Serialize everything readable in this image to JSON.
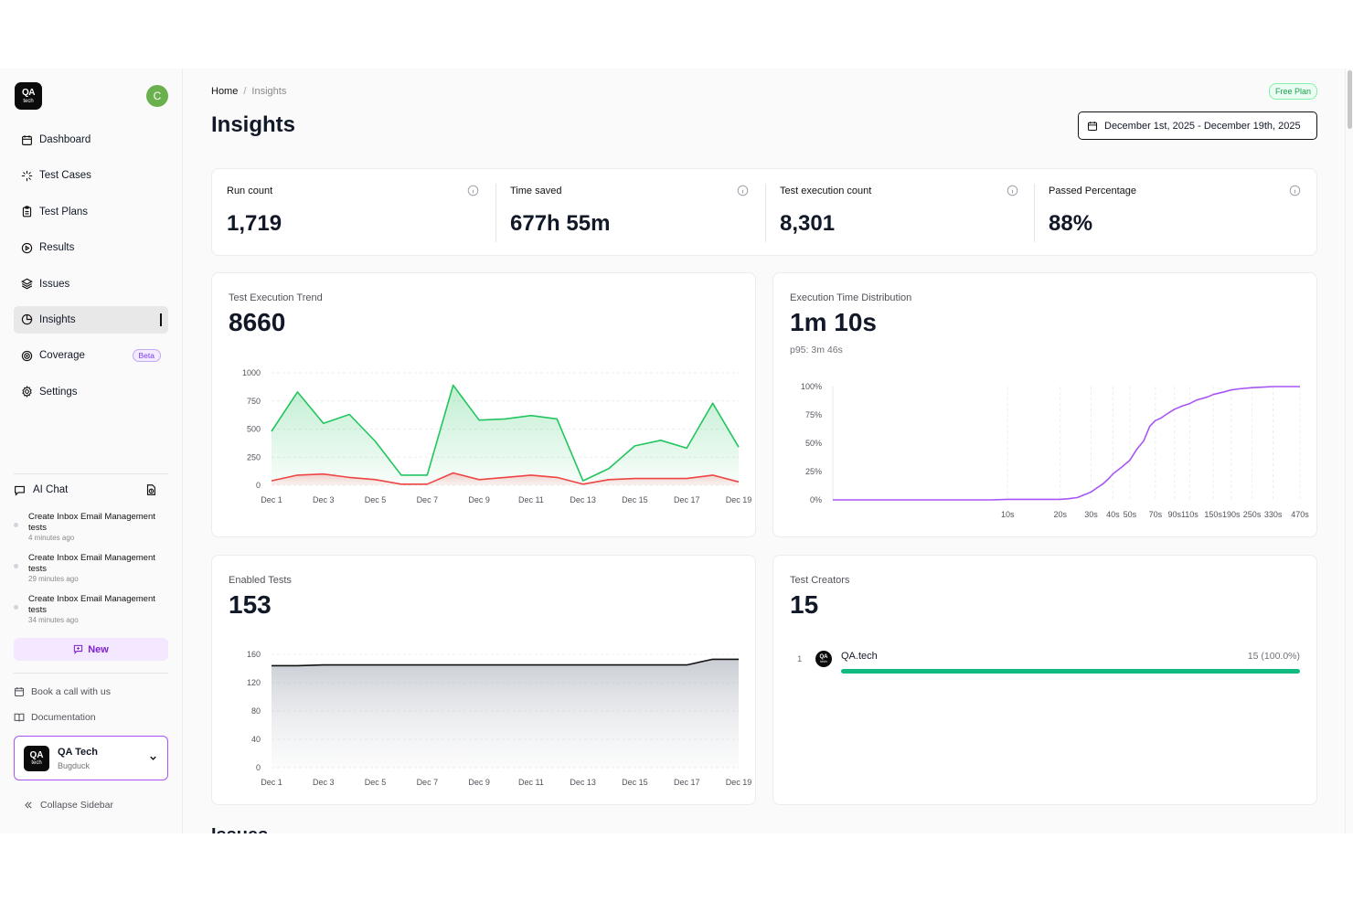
{
  "brand": {
    "logo_top": "QA",
    "logo_bottom": "tech",
    "user_initial": "C"
  },
  "sidebar": {
    "items": [
      {
        "label": "Dashboard",
        "icon": "calendar-icon"
      },
      {
        "label": "Test Cases",
        "icon": "sparkle-icon"
      },
      {
        "label": "Test Plans",
        "icon": "clipboard-icon"
      },
      {
        "label": "Results",
        "icon": "play-circle-icon"
      },
      {
        "label": "Issues",
        "icon": "layers-icon"
      },
      {
        "label": "Insights",
        "icon": "pie-chart-icon",
        "active": true
      },
      {
        "label": "Coverage",
        "icon": "target-icon",
        "badge": "Beta"
      },
      {
        "label": "Settings",
        "icon": "gear-icon"
      }
    ],
    "ai_chat": {
      "label": "AI Chat",
      "chats": [
        {
          "title": "Create Inbox Email Management tests",
          "time": "4 minutes ago"
        },
        {
          "title": "Create Inbox Email Management tests",
          "time": "29 minutes ago"
        },
        {
          "title": "Create Inbox Email Management tests",
          "time": "34 minutes ago"
        }
      ],
      "new_label": "New"
    },
    "footer": {
      "book_call": "Book a call with us",
      "docs": "Documentation"
    },
    "org": {
      "name": "QA Tech",
      "project": "Bugduck"
    },
    "collapse_label": "Collapse Sidebar"
  },
  "header": {
    "breadcrumb": {
      "home": "Home",
      "sep": "/",
      "current": "Insights"
    },
    "plan_badge": "Free Plan",
    "title": "Insights",
    "date_range": "December 1st, 2025 - December 19th, 2025"
  },
  "stats": [
    {
      "label": "Run count",
      "value": "1,719"
    },
    {
      "label": "Time saved",
      "value": "677h 55m"
    },
    {
      "label": "Test execution count",
      "value": "8,301"
    },
    {
      "label": "Passed Percentage",
      "value": "88%"
    }
  ],
  "cards": {
    "trend": {
      "title": "Test Execution Trend",
      "value": "8660"
    },
    "distribution": {
      "title": "Execution Time Distribution",
      "value": "1m 10s",
      "sub": "p95: 3m 46s"
    },
    "enabled": {
      "title": "Enabled Tests",
      "value": "153"
    },
    "creators": {
      "title": "Test Creators",
      "value": "15",
      "list": [
        {
          "rank": "1",
          "name": "QA.tech",
          "count": "15 (100.0%)",
          "share": 1.0
        }
      ]
    }
  },
  "issues_heading": "Issues",
  "colors": {
    "passed": "#22c55e",
    "failed": "#ef4444",
    "distribution": "#a855f7",
    "enabled": "#111111",
    "creator_bar": "#10b981"
  },
  "chart_data": [
    {
      "type": "area",
      "title": "Test Execution Trend",
      "x": [
        "Dec 1",
        "Dec 2",
        "Dec 3",
        "Dec 4",
        "Dec 5",
        "Dec 6",
        "Dec 7",
        "Dec 8",
        "Dec 9",
        "Dec 10",
        "Dec 11",
        "Dec 12",
        "Dec 13",
        "Dec 14",
        "Dec 15",
        "Dec 16",
        "Dec 17",
        "Dec 18",
        "Dec 19"
      ],
      "x_tick_labels": [
        "Dec 1",
        "Dec 3",
        "Dec 5",
        "Dec 7",
        "Dec 9",
        "Dec 11",
        "Dec 13",
        "Dec 15",
        "Dec 17",
        "Dec 19"
      ],
      "series": [
        {
          "values": [
            480,
            830,
            550,
            630,
            390,
            90,
            90,
            890,
            580,
            590,
            620,
            590,
            40,
            150,
            350,
            400,
            330,
            730,
            340
          ]
        },
        {
          "values": [
            40,
            90,
            100,
            70,
            50,
            10,
            10,
            110,
            50,
            70,
            90,
            70,
            10,
            50,
            60,
            60,
            60,
            90,
            30
          ]
        }
      ],
      "ylim": [
        0,
        1000
      ],
      "y_ticks": [
        0,
        250,
        500,
        750,
        1000
      ],
      "grid": true
    },
    {
      "type": "line",
      "title": "Execution Time Distribution",
      "x_tick_labels": [
        "10s",
        "20s",
        "30s",
        "40s",
        "50s",
        "70s",
        "90s",
        "110s",
        "150s",
        "190s",
        "250s",
        "330s",
        "470s"
      ],
      "x_scale": "log",
      "x": [
        1,
        2,
        4,
        6,
        8,
        10,
        12,
        15,
        18,
        20,
        22,
        25,
        28,
        30,
        32,
        35,
        38,
        40,
        45,
        50,
        55,
        60,
        65,
        70,
        75,
        80,
        90,
        100,
        110,
        120,
        140,
        150,
        170,
        190,
        210,
        250,
        290,
        330,
        400,
        470
      ],
      "values": [
        0,
        0,
        0,
        0,
        0,
        0.5,
        0.5,
        0.5,
        0.5,
        0.5,
        1,
        2,
        5,
        7,
        10,
        14,
        19,
        23,
        29,
        35,
        45,
        52,
        65,
        70,
        72,
        75,
        80,
        83,
        85,
        88,
        91,
        93,
        95,
        97,
        98,
        99,
        99.5,
        100,
        100,
        100
      ],
      "ylim": [
        0,
        100
      ],
      "y_ticks": [
        "0%",
        "25%",
        "50%",
        "75%",
        "100%"
      ],
      "grid": true
    },
    {
      "type": "area",
      "title": "Enabled Tests",
      "x": [
        "Dec 1",
        "Dec 2",
        "Dec 3",
        "Dec 4",
        "Dec 5",
        "Dec 6",
        "Dec 7",
        "Dec 8",
        "Dec 9",
        "Dec 10",
        "Dec 11",
        "Dec 12",
        "Dec 13",
        "Dec 14",
        "Dec 15",
        "Dec 16",
        "Dec 17",
        "Dec 18",
        "Dec 19"
      ],
      "x_tick_labels": [
        "Dec 1",
        "Dec 3",
        "Dec 5",
        "Dec 7",
        "Dec 9",
        "Dec 11",
        "Dec 13",
        "Dec 15",
        "Dec 17",
        "Dec 19"
      ],
      "values": [
        144,
        144,
        145,
        145,
        145,
        145,
        145,
        145,
        145,
        145,
        145,
        145,
        145,
        145,
        145,
        145,
        145,
        153,
        153
      ],
      "ylim": [
        0,
        160
      ],
      "y_ticks": [
        0,
        40,
        80,
        120,
        160
      ],
      "grid": true
    }
  ]
}
